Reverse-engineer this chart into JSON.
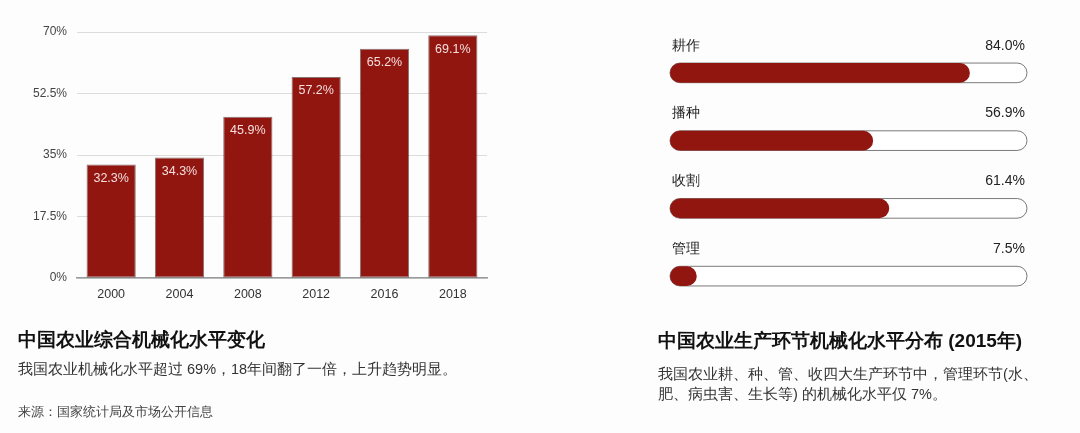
{
  "chart_data": [
    {
      "type": "bar",
      "title": "中国农业综合机械化水平变化",
      "subtitle": "我国农业机械化水平超过 69%，18年间翻了一倍，上升趋势明显。",
      "annotations": [
        "来源：国家统计局及市场公开信息"
      ],
      "categories": [
        "2000",
        "2004",
        "2008",
        "2012",
        "2016",
        "2018"
      ],
      "values": [
        32.3,
        34.3,
        45.9,
        57.2,
        65.2,
        69.1
      ],
      "color": "#921610",
      "value_labels": [
        "32.3%",
        "34.3%",
        "45.9%",
        "57.2%",
        "65.2%",
        "69.1%"
      ],
      "ylim": [
        0,
        70
      ],
      "yticks": [
        {
          "value": 0,
          "label": "0%"
        },
        {
          "value": 17.5,
          "label": "17.5%"
        },
        {
          "value": 35,
          "label": "35%"
        },
        {
          "value": 52.5,
          "label": "52.5%"
        },
        {
          "value": 70,
          "label": "70%"
        }
      ],
      "grid": "y"
    },
    {
      "type": "bar",
      "orientation": "horizontal",
      "title": "中国农业生产环节机械化水平分布 (2015年)",
      "subtitle": "我国农业耕、种、管、收四大生产环节中，管理环节(水、肥、病虫害、生长等) 的机械化水平仅 7%。",
      "categories": [
        "耕作",
        "播种",
        "收割",
        "管理"
      ],
      "values": [
        84.0,
        56.9,
        61.4,
        7.5
      ],
      "color": "#921610",
      "value_labels": [
        "84.0%",
        "56.9%",
        "61.4%",
        "7.5%"
      ],
      "xlim": [
        0,
        100
      ],
      "tick_labels": "y"
    }
  ]
}
